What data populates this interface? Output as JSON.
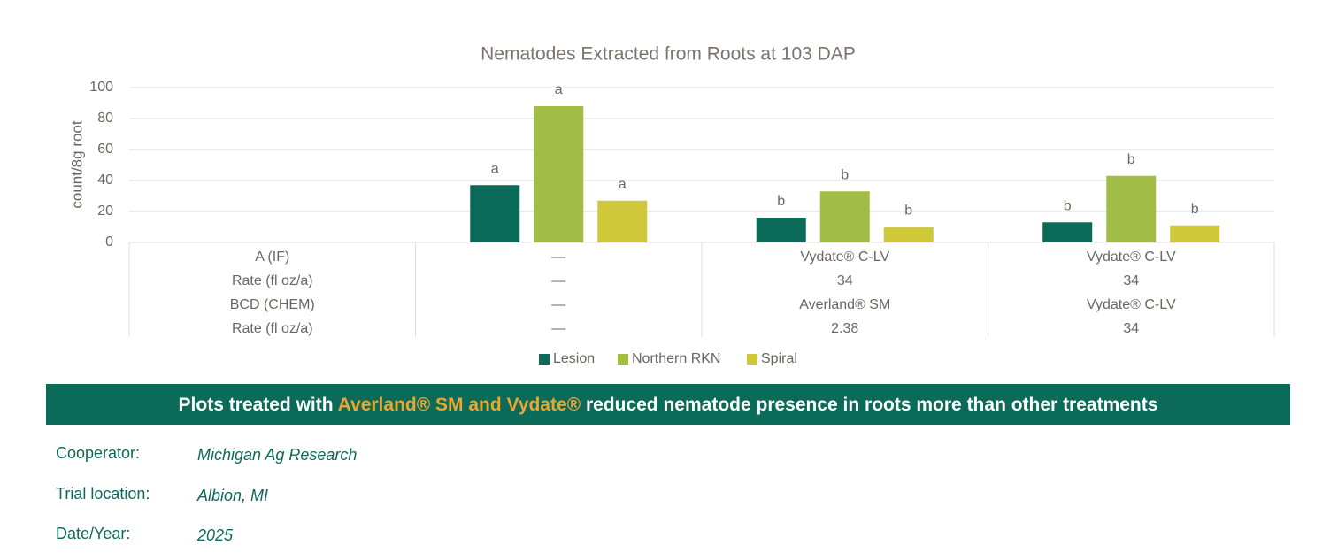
{
  "chart_data": {
    "type": "bar",
    "title": "Nematodes Extracted from Roots at 103 DAP",
    "y_label": "count/8g root",
    "categories": [
      null,
      null,
      null
    ],
    "series": [
      {
        "name": "Lesion",
        "color": "#0b6b58",
        "values": [
          37,
          16,
          13
        ],
        "significance_letters": [
          "a",
          "b",
          "b"
        ]
      },
      {
        "name": "Northern RKN",
        "color": "#a2bd45",
        "values": [
          88,
          33,
          43
        ],
        "significance_letters": [
          "a",
          "b",
          "b"
        ]
      },
      {
        "name": "Spiral",
        "color": "#cfc93a",
        "values": [
          27,
          10,
          11
        ],
        "significance_letters": [
          "a",
          "b",
          "b"
        ]
      }
    ],
    "ylim": [
      0,
      100
    ],
    "yticks": [
      0,
      20,
      40,
      60,
      80,
      100
    ],
    "grid": true,
    "legend": "bottom",
    "table": {
      "row_labels": [
        "A (IF)",
        "Rate (fl oz/a)",
        "BCD (CHEM)",
        "Rate (fl oz/a)"
      ],
      "rows": [
        [
          "—",
          "Vydate® C-LV",
          "Vydate® C-LV"
        ],
        [
          "—",
          "34",
          "34"
        ],
        [
          "—",
          "Averland® SM",
          "Vydate® C-LV"
        ],
        [
          "—",
          "2.38",
          "34"
        ]
      ]
    }
  },
  "banner": {
    "parts": [
      "Plots treated with ",
      "Averland® SM and Vydate®",
      " reduced nematode presence in roots more than other treatments"
    ]
  },
  "info": [
    {
      "label": "Cooperator:",
      "value": "Michigan Ag Research"
    },
    {
      "label": "Trial location:",
      "value": "Albion, MI"
    },
    {
      "label": "Date/Year:",
      "value": "2025"
    }
  ]
}
